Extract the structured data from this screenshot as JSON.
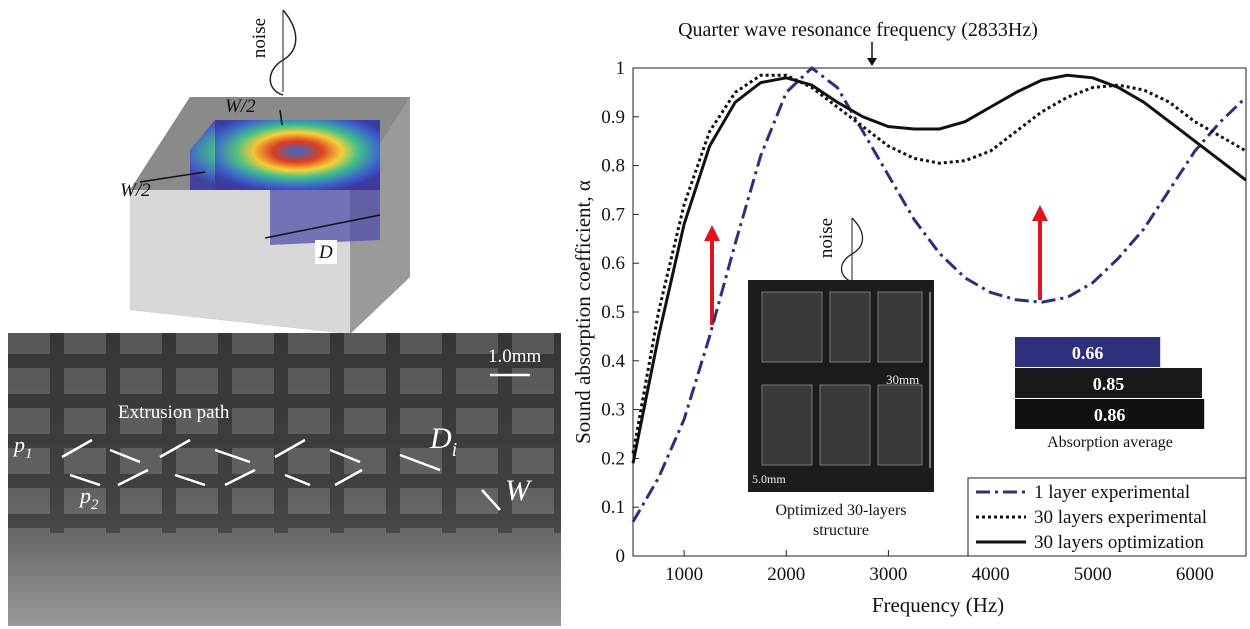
{
  "chart_data": {
    "type": "line",
    "annotation": "Quarter wave resonance frequency (2833Hz)",
    "x_label": "Frequency (Hz)",
    "y_label": "Sound absorption coefficient, α",
    "x": [
      500,
      750,
      1000,
      1250,
      1500,
      1750,
      2000,
      2250,
      2500,
      2750,
      3000,
      3250,
      3500,
      3750,
      4000,
      4250,
      4500,
      4750,
      5000,
      5250,
      5500,
      5750,
      6000,
      6250,
      6500
    ],
    "series": [
      {
        "name": "1 layer experimental",
        "color": "#2e2f7a",
        "style": "dashdot",
        "values": [
          0.07,
          0.16,
          0.28,
          0.45,
          0.64,
          0.82,
          0.95,
          1.0,
          0.96,
          0.87,
          0.78,
          0.69,
          0.62,
          0.57,
          0.54,
          0.525,
          0.52,
          0.53,
          0.56,
          0.61,
          0.67,
          0.75,
          0.83,
          0.89,
          0.94
        ]
      },
      {
        "name": "30 layers experimental",
        "color": "#111111",
        "style": "dotted",
        "values": [
          0.21,
          0.5,
          0.72,
          0.87,
          0.95,
          0.985,
          0.985,
          0.96,
          0.92,
          0.88,
          0.84,
          0.815,
          0.805,
          0.81,
          0.83,
          0.87,
          0.91,
          0.94,
          0.96,
          0.965,
          0.955,
          0.93,
          0.89,
          0.86,
          0.83
        ]
      },
      {
        "name": "30 layers optimization",
        "color": "#111111",
        "style": "solid",
        "values": [
          0.19,
          0.45,
          0.68,
          0.84,
          0.93,
          0.97,
          0.98,
          0.965,
          0.93,
          0.9,
          0.88,
          0.875,
          0.875,
          0.89,
          0.92,
          0.95,
          0.975,
          0.985,
          0.98,
          0.96,
          0.93,
          0.89,
          0.85,
          0.81,
          0.77
        ]
      }
    ],
    "xlim": [
      500,
      6500
    ],
    "xticks": [
      1000,
      2000,
      3000,
      4000,
      5000,
      6000
    ],
    "ylim": [
      0,
      1
    ],
    "yticks": [
      0,
      0.1,
      0.2,
      0.3,
      0.4,
      0.5,
      0.6,
      0.7,
      0.8,
      0.9,
      1
    ],
    "legend": "lower right",
    "inset": {
      "noise": "noise",
      "height_label": "30mm",
      "scale": "5.0mm",
      "caption": "Optimized 30-layers structure"
    },
    "inset_bars": {
      "title": "Absorption average",
      "values": [
        0.66,
        0.85,
        0.86
      ],
      "colors": [
        "#2e2f7a",
        "#1a1a1a",
        "#111111"
      ]
    }
  },
  "left_panel": {
    "noise": "noise",
    "w_half_top": "W/2",
    "w_half_left": "W/2",
    "d": "D",
    "scale": "1.0mm",
    "extrusion": "Extrusion path",
    "p1": {
      "text": "p",
      "sub": "1"
    },
    "p2": {
      "text": "p",
      "sub": "2"
    },
    "di": {
      "text": "D",
      "sub": "i"
    },
    "w": "W"
  }
}
